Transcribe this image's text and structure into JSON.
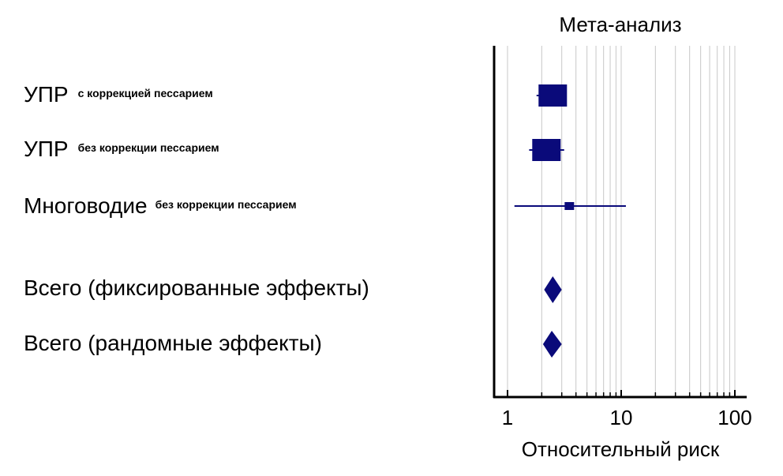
{
  "chart_data": {
    "type": "forest",
    "title": "Мета-анализ",
    "xlabel": "Относительный риск",
    "x_scale": "log",
    "xlim": [
      0.85,
      150
    ],
    "xticks": [
      {
        "value": 1,
        "label": "1"
      },
      {
        "value": 10,
        "label": "10"
      },
      {
        "value": 100,
        "label": "100"
      }
    ],
    "grid": true,
    "studies": [
      {
        "label": "УПР",
        "sublabel": "с коррекцией пессарием",
        "estimate": 2.5,
        "ci": [
          1.8,
          3.3
        ],
        "weight": "large"
      },
      {
        "label": "УПР",
        "sublabel": "без коррекции пессарием",
        "estimate": 2.2,
        "ci": [
          1.55,
          3.15
        ],
        "weight": "large"
      },
      {
        "label": "Многоводие",
        "sublabel": "без коррекции пессарием",
        "estimate": 3.5,
        "ci": [
          1.15,
          11
        ],
        "weight": "small"
      }
    ],
    "pooled": [
      {
        "label": "Всего (фиксированные эффекты)",
        "estimate": 2.5,
        "ci": [
          2.1,
          3.0
        ]
      },
      {
        "label": "Всего (рандомные эффекты)",
        "estimate": 2.45,
        "ci": [
          2.05,
          3.0
        ]
      }
    ],
    "colors": {
      "marker": "#0a0a7a",
      "axis": "#000000",
      "grid": "#c8c8c8"
    }
  }
}
